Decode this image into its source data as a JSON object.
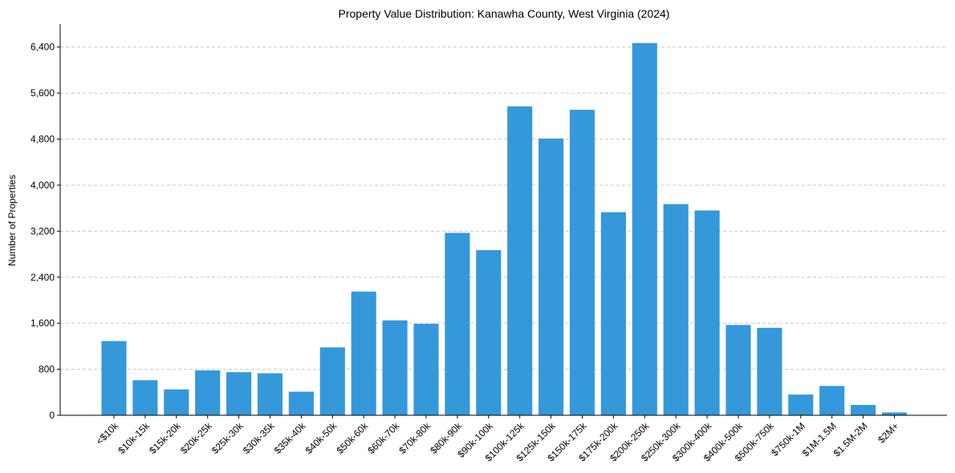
{
  "chart_data": {
    "type": "bar",
    "title": "Property Value Distribution: Kanawha County, West Virginia (2024)",
    "xlabel": "",
    "ylabel": "Number of Properties",
    "categories": [
      "<$10k",
      "$10k-15k",
      "$15k-20k",
      "$20k-25k",
      "$25k-30k",
      "$30k-35k",
      "$35k-40k",
      "$40k-50k",
      "$50k-60k",
      "$60k-70k",
      "$70k-80k",
      "$80k-90k",
      "$90k-100k",
      "$100k-125k",
      "$125k-150k",
      "$150k-175k",
      "$175k-200k",
      "$200k-250k",
      "$250k-300k",
      "$300k-400k",
      "$400k-500k",
      "$500k-750k",
      "$750k-1M",
      "$1M-1.5M",
      "$1.5M-2M",
      "$2M+"
    ],
    "values": [
      1290,
      610,
      450,
      780,
      750,
      730,
      410,
      1180,
      2150,
      1650,
      1590,
      3170,
      2870,
      5370,
      4810,
      5310,
      3530,
      6470,
      3670,
      3560,
      1570,
      1520,
      360,
      510,
      180,
      50
    ],
    "yticks": [
      0,
      800,
      1600,
      2400,
      3200,
      4000,
      4800,
      5600,
      6400
    ],
    "ytick_labels": [
      "0",
      "800",
      "1,600",
      "2,400",
      "3,200",
      "4,000",
      "4,800",
      "5,600",
      "6,400"
    ],
    "ylim": [
      0,
      6800
    ],
    "grid": true,
    "bar_color": "#3498db"
  }
}
